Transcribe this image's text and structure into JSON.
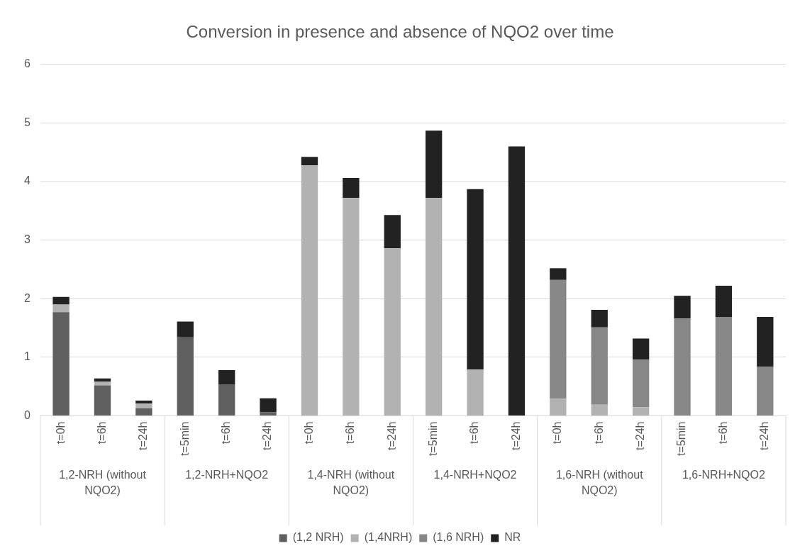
{
  "chart_data": {
    "type": "bar",
    "title": "Conversion in presence and absence of NQO2 over time",
    "categories": [
      "t=0h",
      "t=6h",
      "t=24h",
      "t=5min",
      "t=6h",
      "t=24h",
      "t=0h",
      "t=6h",
      "t=24h",
      "t=5min",
      "t=6h",
      "t=24h",
      "t=0h",
      "t=6h",
      "t=24h",
      "t=5min",
      "t=6h",
      "t=24h"
    ],
    "annotations": [
      "1,2-NRH (without NQO2)",
      "1,2-NRH+NQO2",
      "1,4-NRH (without NQO2)",
      "1,4-NRH+NQO2",
      "1,6-NRH (without NQO2)",
      "1,6-NRH+NQO2"
    ],
    "stacked": true,
    "series": [
      {
        "name": "(1,2 NRH)",
        "color": "#5f5f5f",
        "values": [
          1.77,
          0.52,
          0.13,
          1.34,
          0.54,
          0.06,
          0,
          0,
          0,
          0,
          0,
          0,
          0,
          0,
          0,
          0,
          0,
          0
        ]
      },
      {
        "name": "(1,4NRH)",
        "color": "#b2b2b2",
        "values": [
          0.13,
          0.06,
          0.08,
          0,
          0,
          0,
          4.28,
          3.72,
          2.86,
          3.72,
          0.79,
          0,
          0.29,
          0.19,
          0.15,
          0,
          0,
          0
        ]
      },
      {
        "name": "(1,6 NRH)",
        "color": "#878787",
        "values": [
          0,
          0,
          0,
          0,
          0,
          0,
          0,
          0,
          0,
          0,
          0,
          0,
          2.03,
          1.32,
          0.81,
          1.66,
          1.69,
          0.84
        ]
      },
      {
        "name": "NR",
        "color": "#222222",
        "values": [
          0.13,
          0.06,
          0.05,
          0.27,
          0.24,
          0.24,
          0.14,
          0.34,
          0.57,
          1.15,
          3.08,
          4.6,
          0.2,
          0.3,
          0.36,
          0.39,
          0.53,
          0.85
        ]
      }
    ],
    "ylim": [
      0,
      6
    ],
    "yticks": [
      0,
      1,
      2,
      3,
      4,
      5,
      6
    ],
    "grid": "y",
    "legend": "bottom"
  }
}
